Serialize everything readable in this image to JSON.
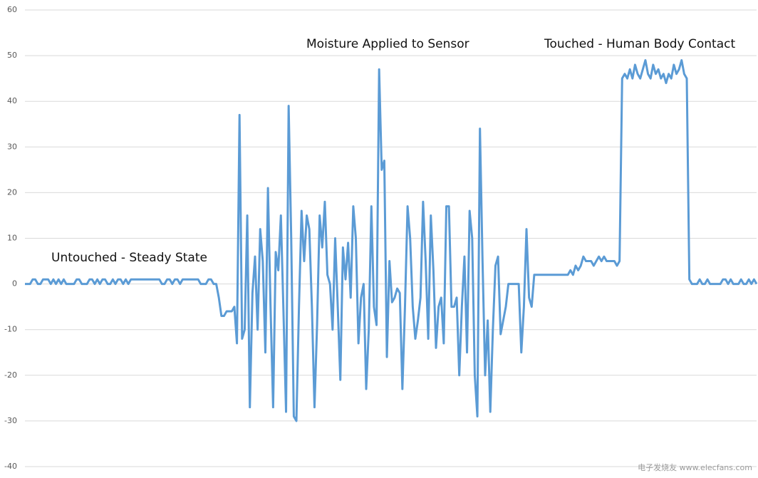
{
  "chart_data": {
    "type": "line",
    "values": [
      0,
      0,
      0,
      1,
      1,
      0,
      0,
      1,
      1,
      1,
      0,
      1,
      0,
      1,
      0,
      1,
      0,
      0,
      0,
      0,
      1,
      1,
      0,
      0,
      0,
      1,
      1,
      0,
      1,
      0,
      1,
      1,
      0,
      0,
      1,
      0,
      1,
      1,
      0,
      1,
      0,
      1,
      1,
      1,
      1,
      1,
      1,
      1,
      1,
      1,
      1,
      1,
      1,
      0,
      0,
      1,
      1,
      0,
      1,
      1,
      0,
      1,
      1,
      1,
      1,
      1,
      1,
      1,
      0,
      0,
      0,
      1,
      1,
      0,
      0,
      -3,
      -7,
      -7,
      -6,
      -6,
      -6,
      -5,
      -13,
      37,
      -12,
      -10,
      15,
      -27,
      -2,
      6,
      -10,
      12,
      5,
      -15,
      21,
      -5,
      -27,
      7,
      3,
      15,
      -6,
      -28,
      39,
      10,
      -29,
      -30,
      -5,
      16,
      5,
      15,
      12,
      -5,
      -27,
      -9,
      15,
      8,
      18,
      2,
      0,
      -10,
      10,
      -5,
      -21,
      8,
      1,
      9,
      -3,
      17,
      10,
      -13,
      -3,
      0,
      -23,
      -10,
      17,
      -5,
      -9,
      47,
      25,
      27,
      -16,
      5,
      -4,
      -3,
      -1,
      -2,
      -23,
      -5,
      17,
      10,
      -5,
      -12,
      -8,
      -3,
      18,
      5,
      -12,
      15,
      3,
      -14,
      -5,
      -3,
      -13,
      17,
      17,
      -5,
      -5,
      -3,
      -20,
      -5,
      6,
      -15,
      16,
      10,
      -20,
      -29,
      34,
      5,
      -20,
      -8,
      -28,
      -10,
      4,
      6,
      -11,
      -8,
      -5,
      0,
      0,
      0,
      0,
      0,
      -15,
      -5,
      12,
      -3,
      -5,
      2,
      2,
      2,
      2,
      2,
      2,
      2,
      2,
      2,
      2,
      2,
      2,
      2,
      2,
      3,
      2,
      4,
      3,
      4,
      6,
      5,
      5,
      5,
      4,
      5,
      6,
      5,
      6,
      5,
      5,
      5,
      5,
      4,
      5,
      45,
      46,
      45,
      47,
      45,
      48,
      46,
      45,
      47,
      49,
      46,
      45,
      48,
      46,
      47,
      45,
      46,
      44,
      46,
      45,
      48,
      46,
      47,
      49,
      46,
      45,
      1,
      0,
      0,
      0,
      1,
      0,
      0,
      1,
      0,
      0,
      0,
      0,
      0,
      1,
      1,
      0,
      1,
      0,
      0,
      0,
      1,
      0,
      0,
      1,
      0,
      1,
      0
    ],
    "color": "#5b9bd5",
    "ylim": [
      -40,
      60
    ],
    "yticks": [
      -40,
      -30,
      -20,
      -10,
      0,
      10,
      20,
      30,
      40,
      50,
      60
    ],
    "grid": true,
    "annotations": [
      "Untouched - Steady State",
      "Moisture Applied to Sensor",
      "Touched - Human Body Contact"
    ],
    "watermark": "电子发烧友 www.elecfans.com"
  }
}
